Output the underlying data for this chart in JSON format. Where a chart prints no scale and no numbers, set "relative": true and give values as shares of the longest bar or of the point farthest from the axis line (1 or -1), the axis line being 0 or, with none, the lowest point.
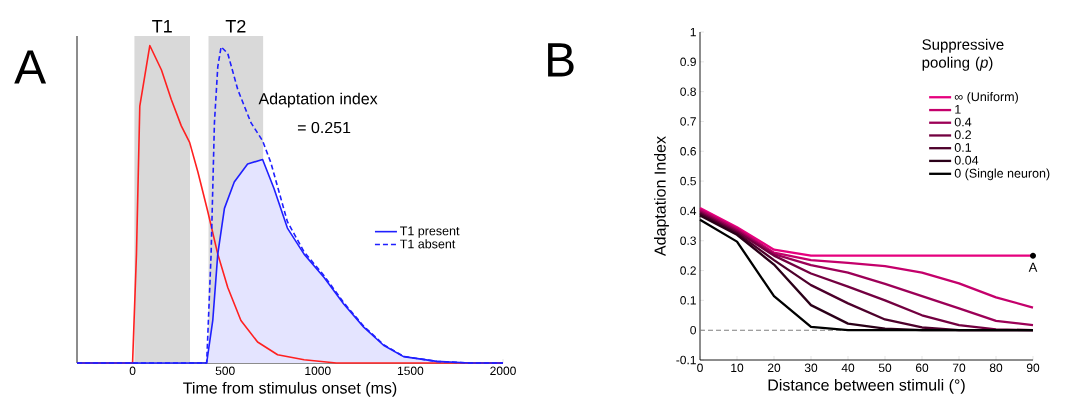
{
  "chart_data": [
    {
      "type": "line",
      "xlabel": "Time from stimulus onset (ms)",
      "xlim": [
        -300,
        2000
      ],
      "xticks": [
        0,
        500,
        1000,
        1500,
        2000
      ],
      "relative": true,
      "legend": "right",
      "annotations": [
        "A",
        "Adaptation index",
        "= 0.251"
      ],
      "bands": [
        {
          "axis": "x",
          "from": 10,
          "to": 310,
          "label": "T1",
          "color": "#d9d9d9"
        },
        {
          "axis": "x",
          "from": 410,
          "to": 705,
          "label": "T2",
          "color": "#d9d9d9"
        }
      ],
      "series": [
        {
          "color": "#ff2020",
          "x": [
            -300,
            0,
            21,
            39,
            93,
            156,
            209,
            263,
            308,
            353,
            406,
            460,
            514,
            585,
            675,
            783,
            926,
            1100,
            2000
          ],
          "values": [
            0,
            0,
            0.343,
            0.809,
            1,
            0.923,
            0.83,
            0.747,
            0.695,
            0.601,
            0.477,
            0.343,
            0.238,
            0.134,
            0.066,
            0.026,
            0.01,
            0,
            0
          ]
        },
        {
          "type": "area",
          "name": "T1 present",
          "color": "#1f1fff",
          "x": [
            -300,
            400,
            433,
            460,
            496,
            549,
            621,
            702,
            764,
            836,
            926,
            1034,
            1140,
            1248,
            1355,
            1463,
            1642,
            1821,
            2000
          ],
          "values": [
            0,
            0,
            0.134,
            0.343,
            0.487,
            0.57,
            0.627,
            0.641,
            0.549,
            0.425,
            0.343,
            0.269,
            0.186,
            0.113,
            0.056,
            0.02,
            0.005,
            0,
            0
          ]
        },
        {
          "name": "T1 absent",
          "color": "#1f1fff",
          "line_style": "dashed",
          "x": [
            -300,
            400,
            424,
            442,
            460,
            478,
            514,
            568,
            639,
            702,
            746,
            836,
            926,
            1034,
            1140,
            1248,
            1355,
            1463,
            1642,
            1821,
            2000
          ],
          "values": [
            0,
            0,
            0.343,
            0.757,
            0.933,
            0.996,
            0.975,
            0.861,
            0.757,
            0.7,
            0.632,
            0.445,
            0.35,
            0.275,
            0.19,
            0.116,
            0.058,
            0.021,
            0.005,
            0,
            0
          ]
        }
      ]
    },
    {
      "type": "line",
      "xlabel": "Distance between stimuli (°)",
      "ylabel": "Adaptation Index",
      "x": [
        0,
        10,
        20,
        30,
        40,
        50,
        60,
        70,
        80,
        90
      ],
      "xlim": [
        0,
        90
      ],
      "ylim": [
        -0.1,
        1
      ],
      "xticks": [
        0,
        10,
        20,
        30,
        40,
        50,
        60,
        70,
        80,
        90
      ],
      "yticks": [
        -0.1,
        0,
        0.1,
        0.2,
        0.3,
        0.4,
        0.5,
        0.6,
        0.7,
        0.8,
        0.9,
        1
      ],
      "legend": "top right",
      "legend_title": "Suppressive pooling (*p*)",
      "ref_lines": [
        {
          "axis": "y",
          "value": 0,
          "color": "#808080",
          "line_style": "dashed"
        }
      ],
      "annotations": [
        "B",
        {
          "text": "A",
          "x": 90,
          "y": 0.25
        }
      ],
      "series": [
        {
          "name": "∞ (Uniform)",
          "color": "#e6007e",
          "values": [
            0.41,
            0.345,
            0.27,
            0.25,
            0.25,
            0.25,
            0.25,
            0.25,
            0.25,
            0.25
          ]
        },
        {
          "name": "1",
          "color": "#c4006b",
          "values": [
            0.405,
            0.34,
            0.26,
            0.235,
            0.226,
            0.215,
            0.193,
            0.157,
            0.11,
            0.076
          ]
        },
        {
          "name": "0.4",
          "color": "#9c0057",
          "values": [
            0.4,
            0.335,
            0.255,
            0.218,
            0.193,
            0.155,
            0.114,
            0.073,
            0.031,
            0.017
          ]
        },
        {
          "name": "0.2",
          "color": "#730040",
          "values": [
            0.395,
            0.33,
            0.25,
            0.19,
            0.146,
            0.1,
            0.05,
            0.017,
            0.003,
            0
          ]
        },
        {
          "name": "0.1",
          "color": "#4d002b",
          "values": [
            0.39,
            0.325,
            0.235,
            0.151,
            0.09,
            0.036,
            0.009,
            0,
            0,
            0
          ]
        },
        {
          "name": "0.04",
          "color": "#2a0018",
          "values": [
            0.385,
            0.32,
            0.22,
            0.084,
            0.022,
            0.005,
            0,
            0,
            0,
            0
          ]
        },
        {
          "name": "0 (Single neuron)",
          "color": "#000000",
          "values": [
            0.37,
            0.297,
            0.114,
            0.011,
            0,
            0,
            0,
            0,
            0,
            0
          ]
        }
      ]
    }
  ]
}
